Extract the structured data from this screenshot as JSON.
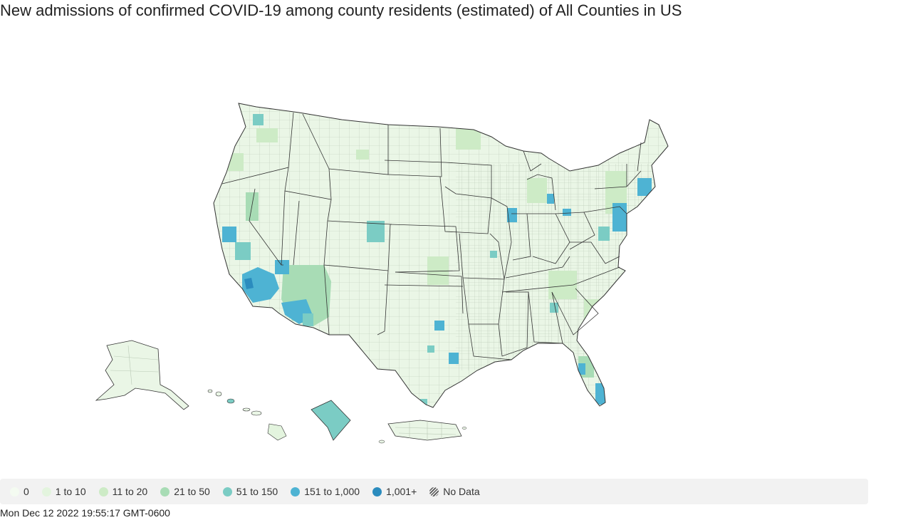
{
  "title": "New admissions of confirmed COVID-19 among county residents (estimated) of All Counties in US",
  "timestamp": "Mon Dec 12 2022 19:55:17 GMT-0600",
  "legend": [
    {
      "label": "0",
      "color": "#f4fbf1"
    },
    {
      "label": "1 to 10",
      "color": "#e3f4de"
    },
    {
      "label": "11 to 20",
      "color": "#cdebc6"
    },
    {
      "label": "21 to 50",
      "color": "#a8dcb5"
    },
    {
      "label": "51 to 150",
      "color": "#7bccc4"
    },
    {
      "label": "151 to 1,000",
      "color": "#4eb3d3"
    },
    {
      "label": "1,001+",
      "color": "#2b8cbe"
    }
  ],
  "no_data_label": "No Data",
  "colors": {
    "border": "#333333",
    "county_border": "#bcbcbc",
    "legend_bg": "#f2f2f2"
  }
}
